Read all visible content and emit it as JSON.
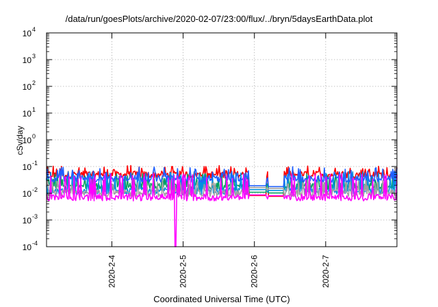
{
  "chart_data": {
    "type": "line",
    "title": "/data/run/goesPlots/archive/2020-02-07/23:00/flux/../bryn/5daysEarthData.plot",
    "xlabel": "Coordinated Universal Time (UTC)",
    "ylabel": "cSv/day",
    "y_scale": "log",
    "ylim": [
      0.0001,
      10000
    ],
    "y_tick_labels": [
      {
        "base": "10",
        "exp": "4"
      },
      {
        "base": "10",
        "exp": "3"
      },
      {
        "base": "10",
        "exp": "2"
      },
      {
        "base": "10",
        "exp": "1"
      },
      {
        "base": "10",
        "exp": "0"
      },
      {
        "base": "10",
        "exp": "-1"
      },
      {
        "base": "10",
        "exp": "-2"
      },
      {
        "base": "10",
        "exp": "-3"
      },
      {
        "base": "10",
        "exp": "-4"
      }
    ],
    "xlim": [
      "2020-02-03 02:00",
      "2020-02-08 00:00"
    ],
    "x_ticks": [
      "2020-2-4",
      "2020-2-5",
      "2020-2-6",
      "2020-2-7"
    ],
    "grid": true,
    "series": [
      {
        "color": "#ff0000",
        "baseline": 0.05,
        "spike": 0.1
      },
      {
        "color": "#00a060",
        "baseline": 0.018,
        "spike": 0.05
      },
      {
        "color": "#0090e0",
        "baseline": 0.012,
        "spike": 0.06
      },
      {
        "color": "#a0a0a0",
        "baseline": 0.01,
        "spike": 0.03
      },
      {
        "color": "#2060ff",
        "baseline": 0.035,
        "spike": 0.09
      },
      {
        "color": "#ff00ff",
        "baseline": 0.007,
        "spike": 0.05
      }
    ],
    "dropout_at": "2020-02-04 21:30",
    "dropout_min": 0.0001,
    "gaps": [
      {
        "from": "2020-02-05 22:00",
        "to": "2020-02-06 04:00",
        "level": 0.015
      },
      {
        "from": "2020-02-06 04:30",
        "to": "2020-02-06 10:00",
        "level": 0.014
      }
    ]
  }
}
